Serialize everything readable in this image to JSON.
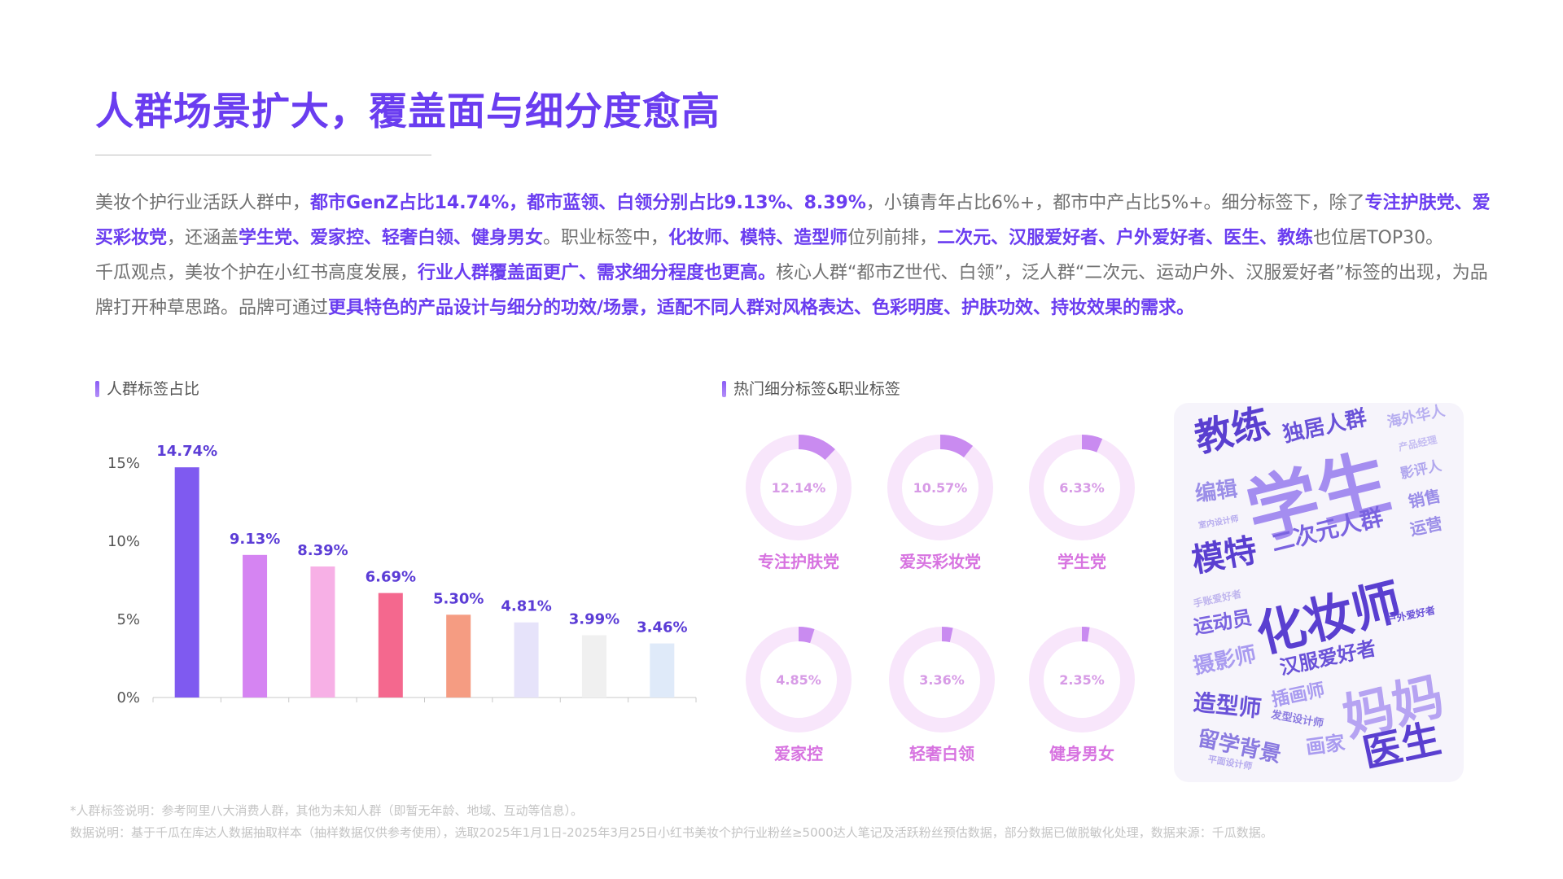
{
  "title": "人群场景扩大，覆盖面与细分度愈高",
  "paragraph1": [
    {
      "t": "美妆个护行业活跃人群中，",
      "h": false
    },
    {
      "t": "都市GenZ占比14.74%，都市蓝领、白领分别占比9.13%、8.39%",
      "h": true
    },
    {
      "t": "，小镇青年占比6%+，都市中产占比5%+。细分标签下，除了",
      "h": false
    },
    {
      "t": "专注护肤党、爱买彩妆党",
      "h": true
    },
    {
      "t": "，还涵盖",
      "h": false
    },
    {
      "t": "学生党、爱家控、轻奢白领、健身男女",
      "h": true
    },
    {
      "t": "。职业标签中，",
      "h": false
    },
    {
      "t": "化妆师、模特、造型师",
      "h": true
    },
    {
      "t": "位列前排，",
      "h": false
    },
    {
      "t": "二次元、汉服爱好者、户外爱好者、医生、教练",
      "h": true
    },
    {
      "t": "也位居TOP30。",
      "h": false
    }
  ],
  "paragraph2": [
    {
      "t": "千瓜观点，美妆个护在小红书高度发展，",
      "h": false
    },
    {
      "t": "行业人群覆盖面更广、需求细分程度也更高。",
      "h": true
    },
    {
      "t": "核心人群“都市Z世代、白领”，泛人群“二次元、运动户外、汉服爱好者”标签的出现，为品牌打开种草思路。品牌可通过",
      "h": false
    },
    {
      "t": "更具特色的产品设计与细分的功效/场景，适配不同人群对风格表达、色彩明度、护肤功效、持妆效果的需求。",
      "h": true
    }
  ],
  "section_left": "人群标签占比",
  "section_right": "热门细分标签&职业标签",
  "chart_data": {
    "type": "bar",
    "title": "",
    "categories": [
      "",
      "",
      "",
      "",
      "",
      "",
      "",
      ""
    ],
    "values": [
      14.74,
      9.13,
      8.39,
      6.69,
      5.3,
      4.81,
      3.99,
      3.46
    ],
    "data_labels": [
      "14.74%",
      "9.13%",
      "8.39%",
      "6.69%",
      "5.30%",
      "4.81%",
      "3.99%",
      "3.46%"
    ],
    "colors": [
      "#7f5af0",
      "#d584f2",
      "#f7b0e6",
      "#f4688e",
      "#f59c82",
      "#e6e3fa",
      "#f0f0f0",
      "#dfeaf9"
    ],
    "y_ticks": [
      0,
      5,
      10,
      15
    ],
    "y_tick_labels": [
      "0%",
      "5%",
      "10%",
      "15%"
    ],
    "ylim": [
      0,
      16
    ],
    "grid": false,
    "label_color": "#5b3cd6"
  },
  "donuts": [
    {
      "label": "专注护肤党",
      "value": 12.14,
      "value_text": "12.14%"
    },
    {
      "label": "爱买彩妆党",
      "value": 10.57,
      "value_text": "10.57%"
    },
    {
      "label": "学生党",
      "value": 6.33,
      "value_text": "6.33%"
    },
    {
      "label": "爱家控",
      "value": 4.85,
      "value_text": "4.85%"
    },
    {
      "label": "轻奢白领",
      "value": 3.36,
      "value_text": "3.36%"
    },
    {
      "label": "健身男女",
      "value": 2.35,
      "value_text": "2.35%"
    }
  ],
  "donut_colors": {
    "track": "#f8e6fb",
    "fill": "#c98bf0",
    "text": "#d79be6",
    "label": "#d773e0"
  },
  "word_cloud": [
    "教练",
    "独居人群",
    "海外华人",
    "产品经理",
    "影评人",
    "学生",
    "销售",
    "编辑",
    "室内设计师",
    "运营",
    "模特",
    "二次元人群",
    "手账爱好者",
    "化妆师",
    "户外爱好者",
    "运动员",
    "汉服爱好者",
    "摄影师",
    "插画师",
    "妈妈",
    "造型师",
    "发型设计师",
    "留学背景",
    "画家",
    "平面设计师",
    "医生"
  ],
  "footnote1": "*人群标签说明：参考阿里八大消费人群，其他为未知人群（即暂无年龄、地域、互动等信息）。",
  "footnote2": "数据说明：基于千瓜在库达人数据抽取样本（抽样数据仅供参考使用），选取2025年1月1日-2025年3月25日小红书美妆个护行业粉丝≥5000达人笔记及活跃粉丝预估数据，部分数据已做脱敏化处理，数据来源：千瓜数据。"
}
